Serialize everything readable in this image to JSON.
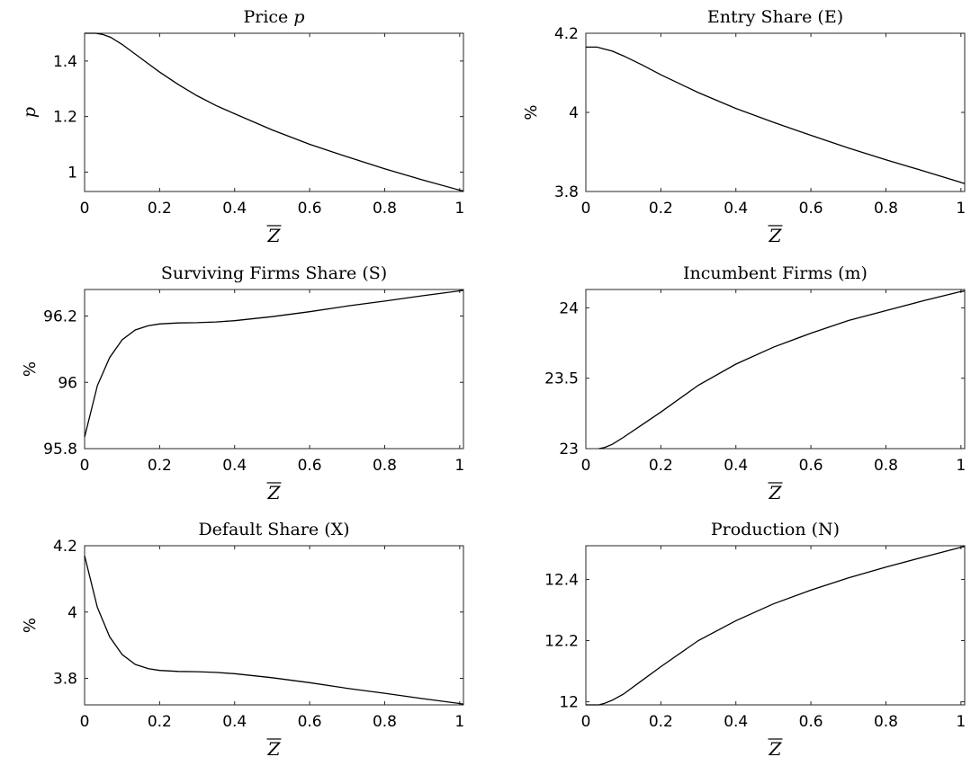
{
  "chart_data": [
    {
      "type": "line",
      "title": "Price p",
      "title_main": "Price ",
      "title_italic": "p",
      "xlabel": "Z",
      "ylabel": "p",
      "ylabel_italic": true,
      "xlim": [
        0,
        1.01
      ],
      "ylim": [
        0.93,
        1.5
      ],
      "xticks": [
        0,
        0.2,
        0.4,
        0.6,
        0.8,
        1
      ],
      "xticklabels": [
        "0",
        "0.2",
        "0.4",
        "0.6",
        "0.8",
        "1"
      ],
      "yticks": [
        1,
        1.2,
        1.4
      ],
      "yticklabels": [
        "1",
        "1.2",
        "1.4"
      ],
      "series": [
        {
          "x": [
            0,
            0.03,
            0.05,
            0.07,
            0.1,
            0.13,
            0.16,
            0.2,
            0.25,
            0.3,
            0.35,
            0.4,
            0.5,
            0.6,
            0.7,
            0.8,
            0.9,
            1.0,
            1.01
          ],
          "y": [
            1.5,
            1.5,
            1.495,
            1.485,
            1.46,
            1.43,
            1.4,
            1.36,
            1.315,
            1.275,
            1.24,
            1.21,
            1.152,
            1.1,
            1.055,
            1.012,
            0.972,
            0.935,
            0.932
          ]
        }
      ]
    },
    {
      "type": "line",
      "title": "Entry Share (E)",
      "xlabel": "Z",
      "ylabel": "%",
      "xlim": [
        0,
        1.01
      ],
      "ylim": [
        3.8,
        4.2
      ],
      "xticks": [
        0,
        0.2,
        0.4,
        0.6,
        0.8,
        1
      ],
      "xticklabels": [
        "0",
        "0.2",
        "0.4",
        "0.6",
        "0.8",
        "1"
      ],
      "yticks": [
        3.8,
        4,
        4.2
      ],
      "yticklabels": [
        "3.8",
        "4",
        "4.2"
      ],
      "series": [
        {
          "x": [
            0,
            0.03,
            0.05,
            0.07,
            0.1,
            0.15,
            0.2,
            0.3,
            0.4,
            0.5,
            0.6,
            0.7,
            0.8,
            0.9,
            1.0,
            1.01
          ],
          "y": [
            4.165,
            4.165,
            4.16,
            4.155,
            4.143,
            4.12,
            4.095,
            4.05,
            4.01,
            3.975,
            3.942,
            3.91,
            3.88,
            3.852,
            3.823,
            3.82
          ]
        }
      ]
    },
    {
      "type": "line",
      "title": "Surviving Firms Share (S)",
      "xlabel": "Z",
      "ylabel": "%",
      "xlim": [
        0,
        1.01
      ],
      "ylim": [
        95.8,
        96.28
      ],
      "xticks": [
        0,
        0.2,
        0.4,
        0.6,
        0.8,
        1
      ],
      "xticklabels": [
        "0",
        "0.2",
        "0.4",
        "0.6",
        "0.8",
        "1"
      ],
      "yticks": [
        95.8,
        96,
        96.2
      ],
      "yticklabels": [
        "95.8",
        "96",
        "96.2"
      ],
      "series": [
        {
          "x": [
            0,
            0.034,
            0.067,
            0.1,
            0.135,
            0.17,
            0.2,
            0.25,
            0.3,
            0.35,
            0.4,
            0.5,
            0.6,
            0.7,
            0.8,
            0.9,
            1.0,
            1.01
          ],
          "y": [
            95.835,
            95.99,
            96.075,
            96.128,
            96.158,
            96.171,
            96.176,
            96.179,
            96.18,
            96.182,
            96.186,
            96.198,
            96.213,
            96.23,
            96.245,
            96.261,
            96.276,
            96.278
          ]
        }
      ]
    },
    {
      "type": "line",
      "title": "Incumbent Firms (m)",
      "xlabel": "Z",
      "ylabel": "",
      "xlim": [
        0,
        1.01
      ],
      "ylim": [
        23,
        24.13
      ],
      "xticks": [
        0,
        0.2,
        0.4,
        0.6,
        0.8,
        1
      ],
      "xticklabels": [
        "0",
        "0.2",
        "0.4",
        "0.6",
        "0.8",
        "1"
      ],
      "yticks": [
        23,
        23.5,
        24
      ],
      "yticklabels": [
        "23",
        "23.5",
        "24"
      ],
      "series": [
        {
          "x": [
            0.035,
            0.05,
            0.07,
            0.1,
            0.15,
            0.2,
            0.3,
            0.4,
            0.5,
            0.6,
            0.7,
            0.8,
            0.9,
            1.0,
            1.01
          ],
          "y": [
            23.0,
            23.008,
            23.03,
            23.08,
            23.17,
            23.26,
            23.45,
            23.6,
            23.72,
            23.82,
            23.91,
            23.98,
            24.05,
            24.115,
            24.12
          ]
        }
      ]
    },
    {
      "type": "line",
      "title": "Default Share (X)",
      "xlabel": "Z",
      "ylabel": "%",
      "xlim": [
        0,
        1.01
      ],
      "ylim": [
        3.72,
        4.2
      ],
      "xticks": [
        0,
        0.2,
        0.4,
        0.6,
        0.8,
        1
      ],
      "xticklabels": [
        "0",
        "0.2",
        "0.4",
        "0.6",
        "0.8",
        "1"
      ],
      "yticks": [
        3.8,
        4,
        4.2
      ],
      "yticklabels": [
        "3.8",
        "4",
        "4.2"
      ],
      "series": [
        {
          "x": [
            0,
            0.034,
            0.067,
            0.1,
            0.135,
            0.17,
            0.2,
            0.25,
            0.3,
            0.35,
            0.4,
            0.5,
            0.6,
            0.7,
            0.8,
            0.9,
            1.0,
            1.01
          ],
          "y": [
            4.17,
            4.014,
            3.925,
            3.872,
            3.842,
            3.829,
            3.824,
            3.821,
            3.82,
            3.818,
            3.814,
            3.802,
            3.787,
            3.77,
            3.755,
            3.739,
            3.724,
            3.722
          ]
        }
      ]
    },
    {
      "type": "line",
      "title": "Production (N)",
      "xlabel": "Z",
      "ylabel": "",
      "xlim": [
        0,
        1.01
      ],
      "ylim": [
        11.99,
        12.51
      ],
      "xticks": [
        0,
        0.2,
        0.4,
        0.6,
        0.8,
        1
      ],
      "xticklabels": [
        "0",
        "0.2",
        "0.4",
        "0.6",
        "0.8",
        "1"
      ],
      "yticks": [
        12,
        12.2,
        12.4
      ],
      "yticklabels": [
        "12",
        "12.2",
        "12.4"
      ],
      "series": [
        {
          "x": [
            0,
            0.035,
            0.05,
            0.07,
            0.1,
            0.15,
            0.2,
            0.3,
            0.4,
            0.5,
            0.6,
            0.7,
            0.8,
            0.9,
            1.0,
            1.01
          ],
          "y": [
            11.99,
            11.99,
            11.995,
            12.005,
            12.025,
            12.07,
            12.115,
            12.2,
            12.265,
            12.32,
            12.365,
            12.405,
            12.44,
            12.473,
            12.505,
            12.508
          ]
        }
      ]
    }
  ]
}
